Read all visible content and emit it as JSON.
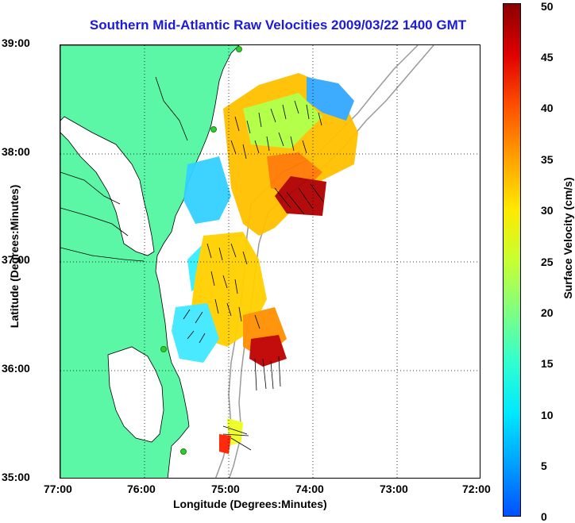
{
  "title": "Southern Mid-Atlantic Raw Velocities 2009/03/22 1400 GMT",
  "axes": {
    "xlabel": "Longitude (Degrees:Minutes)",
    "ylabel": "Latitude (Degrees:Minutes)",
    "x_ticks": [
      "77:00",
      "76:00",
      "75:00",
      "74:00",
      "73:00",
      "72:00"
    ],
    "y_ticks": [
      "39:00",
      "38:00",
      "37:00",
      "36:00",
      "35:00"
    ],
    "grid": "dotted"
  },
  "colorbar": {
    "label": "Surface Velocity (cm/s)",
    "ticks": [
      "50",
      "45",
      "40",
      "35",
      "30",
      "25",
      "20",
      "15",
      "10",
      "5",
      "0"
    ],
    "range": [
      0,
      50
    ],
    "colors": [
      "#0050ff",
      "#00e8ff",
      "#80ff80",
      "#ffe800",
      "#ff5000",
      "#8a0000"
    ]
  },
  "map_colors": {
    "land": "#5cf7a6",
    "water": "#ffffff",
    "bathymetry": "#9a9a9a",
    "site_marker": "#2ecc2e"
  }
}
